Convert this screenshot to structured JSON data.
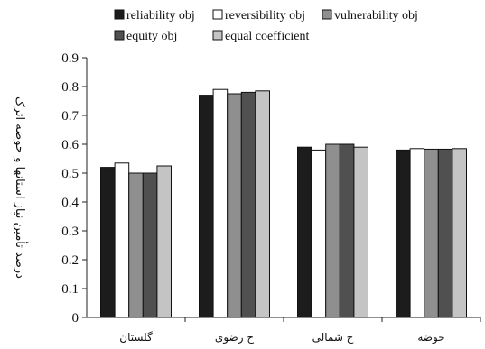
{
  "chart_data": {
    "type": "bar",
    "title": "",
    "xlabel": "",
    "ylabel": "درصد تأمین نیاز استانها و حوضه اترک",
    "ylim": [
      0,
      0.9
    ],
    "yticks": [
      "0",
      "0.1",
      "0.2",
      "0.3",
      "0.4",
      "0.5",
      "0.6",
      "0.7",
      "0.8",
      "0.9"
    ],
    "grid": false,
    "legend_position": "top",
    "categories": [
      "گلستان",
      "خ رضوی",
      "خ شمالی",
      "حوضه"
    ],
    "series": [
      {
        "name": "reliability obj",
        "color": "#1c1c1c",
        "values": [
          0.52,
          0.77,
          0.59,
          0.58
        ]
      },
      {
        "name": "reversibility obj",
        "color": "#ffffff",
        "values": [
          0.535,
          0.79,
          0.58,
          0.585
        ]
      },
      {
        "name": "vulnerability obj",
        "color": "#8f8f8f",
        "values": [
          0.5,
          0.775,
          0.6,
          0.583
        ]
      },
      {
        "name": "equity obj",
        "color": "#505050",
        "values": [
          0.5,
          0.78,
          0.6,
          0.583
        ]
      },
      {
        "name": "equal coefficient",
        "color": "#c4c4c4",
        "values": [
          0.525,
          0.785,
          0.59,
          0.585
        ]
      }
    ]
  }
}
